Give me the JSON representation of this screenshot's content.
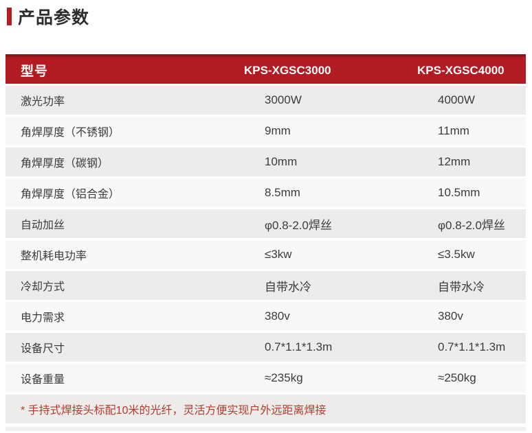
{
  "page": {
    "title": "产品参数"
  },
  "colors": {
    "accent_red": "#b01e23",
    "header_red": "#b11b21",
    "header_border_red": "#8e1519",
    "row_gray": "#edecea",
    "row_light": "#f9f8f7",
    "footnote_red": "#b23c2e"
  },
  "table": {
    "header": {
      "label": "型号",
      "columns": [
        "KPS-XGSC3000",
        "KPS-XGSC4000"
      ]
    },
    "rows": [
      {
        "label": "激光功率",
        "col1": "3000W",
        "col2": "4000W"
      },
      {
        "label": "角焊厚度（不锈钢）",
        "col1": "9mm",
        "col2": "11mm"
      },
      {
        "label": "角焊厚度（碳钢）",
        "col1": "10mm",
        "col2": "12mm"
      },
      {
        "label": "角焊厚度（铝合金）",
        "col1": "8.5mm",
        "col2": "10.5mm"
      },
      {
        "label": "自动加丝",
        "col1": "φ0.8-2.0焊丝",
        "col2": "φ0.8-2.0焊丝"
      },
      {
        "label": "整机耗电功率",
        "col1": "≤3kw",
        "col2": "≤3.5kw"
      },
      {
        "label": "冷却方式",
        "col1": "自带水冷",
        "col2": "自带水冷"
      },
      {
        "label": "电力需求",
        "col1": "380v",
        "col2": "380v"
      },
      {
        "label": "设备尺寸",
        "col1": "0.7*1.1*1.3m",
        "col2": "0.7*1.1*1.3m"
      },
      {
        "label": "设备重量",
        "col1": "≈235kg",
        "col2": "≈250kg"
      }
    ],
    "footnote": "* 手持式焊接头标配10米的光纤，灵活方便实现户外远距离焊接"
  }
}
